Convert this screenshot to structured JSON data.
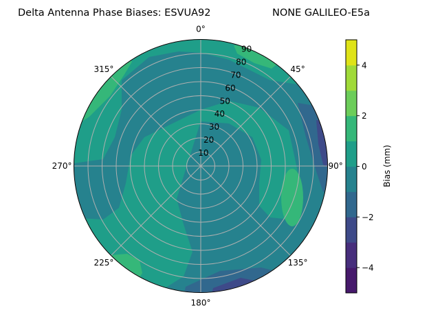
{
  "chart_data": {
    "type": "polar-contour",
    "title_left": "Delta Antenna Phase Biases: ESVUA92",
    "title_right": "NONE GALILEO-E5a",
    "theta_zero": "top",
    "theta_direction": "clockwise",
    "theta_ticks": [
      "0°",
      "45°",
      "90°",
      "135°",
      "180°",
      "225°",
      "270°",
      "315°"
    ],
    "r_ticks": [
      "10",
      "20",
      "30",
      "40",
      "50",
      "60",
      "70",
      "80",
      "90"
    ],
    "r_range": [
      0,
      90
    ],
    "grid": true,
    "colorbar": {
      "label": "Bias (mm)",
      "range": [
        -5,
        5
      ],
      "levels": [
        -5,
        -4,
        -3,
        -2,
        -1,
        0,
        1,
        2,
        3,
        4,
        5
      ],
      "ticks": [
        "−4",
        "−2",
        "0",
        "2",
        "4"
      ],
      "tick_values": [
        -4,
        -2,
        0,
        2,
        4
      ],
      "colors": [
        "#46196b",
        "#472e7c",
        "#3e4a89",
        "#31688e",
        "#26828e",
        "#1f9e89",
        "#35b779",
        "#6ccd5a",
        "#a0da39",
        "#dfe318"
      ]
    },
    "regions": [
      {
        "level": "0 to 1",
        "description_area": "background"
      },
      {
        "level": "-1 to 0",
        "area": "band r≈40–85 from 285° through 0° to 120°; central blob 90°–220° r≈10–90"
      },
      {
        "level": "1 to 2",
        "area": "edges near 20°, 300°, 230° and blob near 100° r≈70"
      },
      {
        "level": "-2 to -1",
        "area": "edge near 70°–105° and 160°–185°"
      },
      {
        "level": "-3 to -2",
        "area": "edge near 75°–90° and 170°"
      }
    ]
  }
}
